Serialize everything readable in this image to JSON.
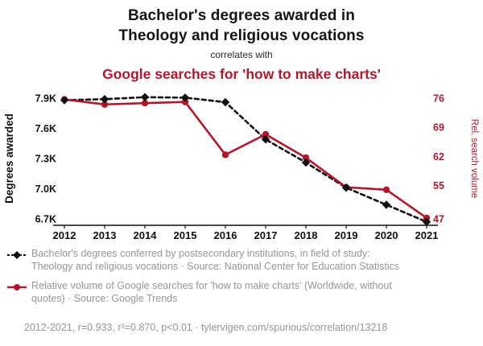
{
  "header": {
    "title_line1": "Bachelor's degrees awarded in",
    "title_line2": "Theology and religious vocations",
    "connector": "correlates with",
    "red_title": "Google searches for 'how to make charts'"
  },
  "colors": {
    "accent_red": "#b2182b",
    "series_black": "#111111",
    "legend_gray": "#979797"
  },
  "chart_data": {
    "type": "line",
    "x": [
      2012,
      2013,
      2014,
      2015,
      2016,
      2017,
      2018,
      2019,
      2020,
      2021
    ],
    "series": [
      {
        "name": "Bachelor's degrees in Theology and religious vocations",
        "axis": "left",
        "color": "#111111",
        "dash": true,
        "marker": "diamond",
        "values": [
          7880,
          7890,
          7910,
          7905,
          7860,
          7490,
          7260,
          7010,
          6840,
          6670
        ]
      },
      {
        "name": "Google searches for 'how to make charts'",
        "axis": "right",
        "color": "#b2182b",
        "dash": false,
        "marker": "circle",
        "values": [
          75.7,
          74.5,
          74.8,
          75.1,
          62.4,
          67.3,
          61.7,
          54.6,
          54.0,
          47.2
        ]
      }
    ],
    "left_axis": {
      "label": "Degrees awarded",
      "ticks": [
        7900,
        7600,
        7300,
        7000,
        6700
      ],
      "tick_labels": [
        "7.9K",
        "7.6K",
        "7.3K",
        "7.0K",
        "6.7K"
      ]
    },
    "right_axis": {
      "label": "Rel. search volume",
      "ticks": [
        76,
        69,
        62,
        55,
        47
      ],
      "tick_labels": [
        "76",
        "69",
        "62",
        "55",
        "47"
      ]
    },
    "x_tick_labels": [
      "2012",
      "2013",
      "2014",
      "2015",
      "2016",
      "2017",
      "2018",
      "2019",
      "2020",
      "2021"
    ],
    "grid": false,
    "legend_position": "below"
  },
  "legend": [
    {
      "text": "Bachelor's degrees conferred by postsecondary institutions, in field of study: Theology and religious vocations · Source: National Center for Education Statistics"
    },
    {
      "text": "Relative volume of Google searches for 'how to make charts' (Worldwide, without quotes) · Source: Google Trends"
    }
  ],
  "footer": {
    "text": "2012-2021, r=0.933, r²=0.870, p<0.01 · tylervigen.com/spurious/correlation/13218"
  }
}
